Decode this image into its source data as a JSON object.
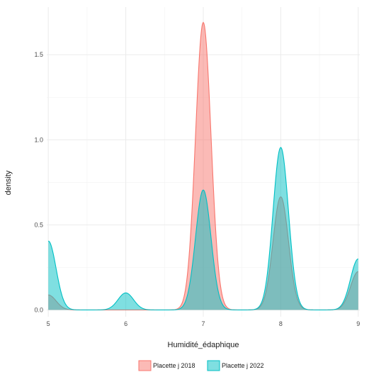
{
  "chart_data": {
    "type": "area",
    "chart_kind": "density",
    "xlabel": "Humidité_édaphique",
    "ylabel": "density",
    "xlim": [
      4.98,
      9.02
    ],
    "ylim": [
      -0.04,
      1.78
    ],
    "x_ticks": [
      5,
      6,
      7,
      8,
      9
    ],
    "x_tick_labels": [
      "5",
      "6",
      "7",
      "8",
      "9"
    ],
    "y_ticks": [
      0.0,
      0.5,
      1.0,
      1.5
    ],
    "y_tick_labels": [
      "0.0",
      "0.5",
      "1.0",
      "1.5"
    ],
    "grid": true,
    "legend_position": "bottom",
    "series": [
      {
        "name": "Placette j 2018",
        "fill_color": "#F8766D",
        "line_color": "#F8766D",
        "components": [
          {
            "mean": 5.0,
            "sd": 0.1,
            "peak": 0.088
          },
          {
            "mean": 7.0,
            "sd": 0.1,
            "peak": 1.69
          },
          {
            "mean": 8.0,
            "sd": 0.1,
            "peak": 0.665
          },
          {
            "mean": 9.0,
            "sd": 0.1,
            "peak": 0.225
          }
        ]
      },
      {
        "name": "Placette j 2022",
        "fill_color": "#00BFC4",
        "line_color": "#00BFC4",
        "components": [
          {
            "mean": 5.0,
            "sd": 0.1,
            "peak": 0.405
          },
          {
            "mean": 6.0,
            "sd": 0.1,
            "peak": 0.1
          },
          {
            "mean": 7.0,
            "sd": 0.1,
            "peak": 0.705
          },
          {
            "mean": 8.0,
            "sd": 0.1,
            "peak": 0.955
          },
          {
            "mean": 9.0,
            "sd": 0.1,
            "peak": 0.3
          }
        ]
      }
    ]
  }
}
